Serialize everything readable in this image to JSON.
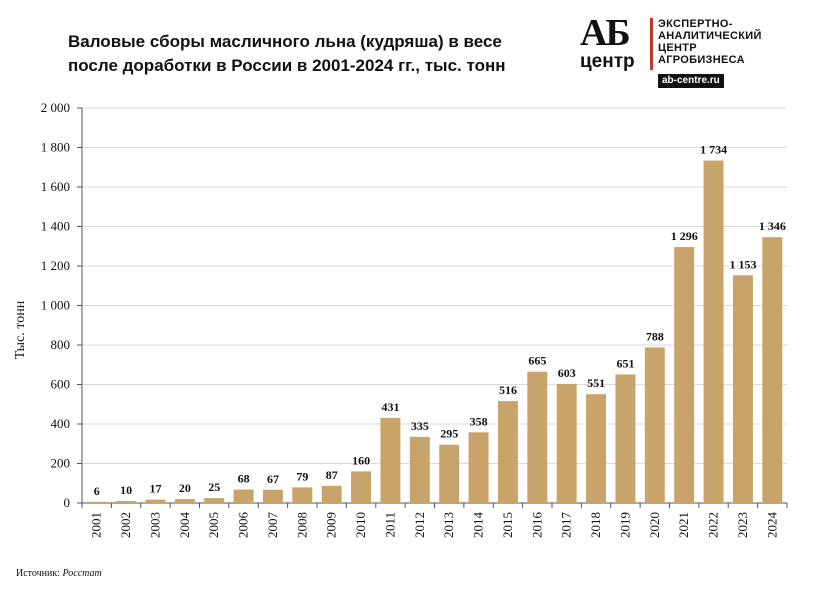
{
  "title": "Валовые сборы масличного льна (кудряша) в весе после доработки в России в 2001-2024 гг., тыс. тонн",
  "logo": {
    "mark": "АБ",
    "word": "центр",
    "lines": [
      "ЭКСПЕРТНО-",
      "АНАЛИТИЧЕСКИЙ",
      "ЦЕНТР",
      "АГРОБИЗНЕСА"
    ],
    "site": "ab-centre.ru"
  },
  "source": {
    "prefix": "Источник: ",
    "name": "Росстат"
  },
  "colors": {
    "bar": "#c9a46a",
    "grid": "#d9d9d9",
    "axis": "#555555"
  },
  "chart_data": {
    "type": "bar",
    "title": "Валовые сборы масличного льна (кудряша) в весе после доработки в России в 2001-2024 гг., тыс. тонн",
    "ylabel": "Тыс. тонн",
    "xlabel": "",
    "ylim": [
      0,
      2000
    ],
    "yticks": [
      0,
      200,
      400,
      600,
      800,
      1000,
      1200,
      1400,
      1600,
      1800,
      2000
    ],
    "ytick_labels": [
      "0",
      "200",
      "400",
      "600",
      "800",
      "1 000",
      "1 200",
      "1 400",
      "1 600",
      "1 800",
      "2 000"
    ],
    "grid": true,
    "categories": [
      "2001",
      "2002",
      "2003",
      "2004",
      "2005",
      "2006",
      "2007",
      "2008",
      "2009",
      "2010",
      "2011",
      "2012",
      "2013",
      "2014",
      "2015",
      "2016",
      "2017",
      "2018",
      "2019",
      "2020",
      "2021",
      "2022",
      "2023",
      "2024"
    ],
    "values": [
      6,
      10,
      17,
      20,
      25,
      68,
      67,
      79,
      87,
      160,
      431,
      335,
      295,
      358,
      516,
      665,
      603,
      551,
      651,
      788,
      1296,
      1734,
      1153,
      1346
    ],
    "value_labels": [
      "6",
      "10",
      "17",
      "20",
      "25",
      "68",
      "67",
      "79",
      "87",
      "160",
      "431",
      "335",
      "295",
      "358",
      "516",
      "665",
      "603",
      "551",
      "651",
      "788",
      "1 296",
      "1 734",
      "1 153",
      "1 346"
    ]
  }
}
